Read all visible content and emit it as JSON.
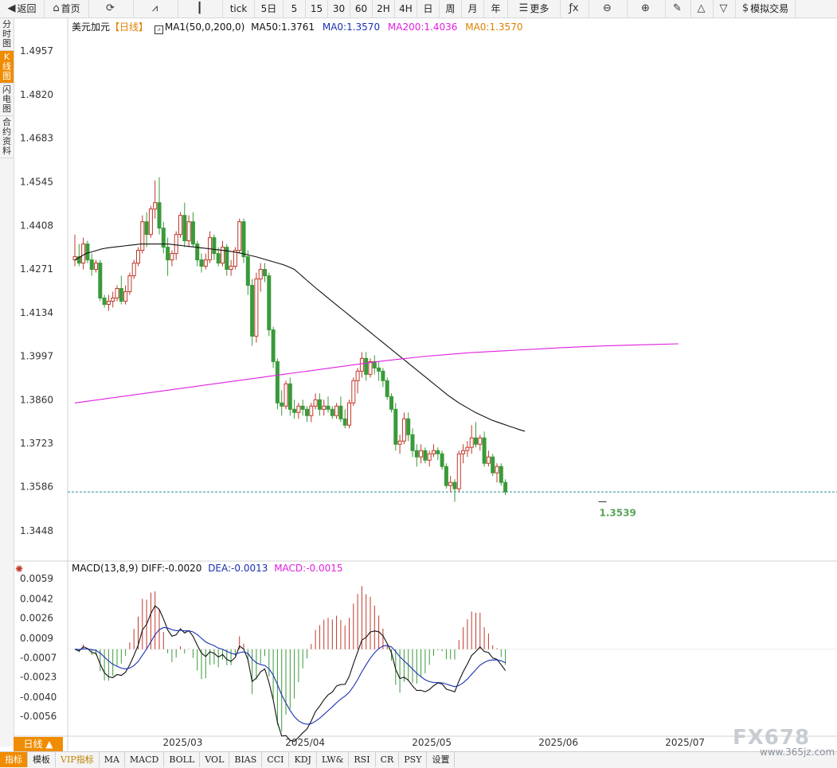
{
  "toolbar": [
    {
      "label": "返回",
      "icon": "back-arrow-icon",
      "glyph": "◀",
      "w": 56
    },
    {
      "label": "首页",
      "icon": "home-icon",
      "glyph": "⌂",
      "w": 56
    },
    {
      "label": "",
      "icon": "refresh-icon",
      "glyph": "⟳",
      "w": 56
    },
    {
      "label": "",
      "icon": "line-chart-icon",
      "glyph": "⩘",
      "w": 56
    },
    {
      "label": "",
      "icon": "candlestick-icon",
      "glyph": "┃",
      "w": 56
    },
    {
      "label": "tick",
      "icon": "",
      "glyph": "",
      "w": 40
    },
    {
      "label": "5日",
      "icon": "",
      "glyph": "",
      "w": 36
    },
    {
      "label": "5",
      "icon": "",
      "glyph": "",
      "w": 28
    },
    {
      "label": "15",
      "icon": "",
      "glyph": "",
      "w": 28
    },
    {
      "label": "30",
      "icon": "",
      "glyph": "",
      "w": 28
    },
    {
      "label": "60",
      "icon": "",
      "glyph": "",
      "w": 28
    },
    {
      "label": "2H",
      "icon": "",
      "glyph": "",
      "w": 28
    },
    {
      "label": "4H",
      "icon": "",
      "glyph": "",
      "w": 28
    },
    {
      "label": "日",
      "icon": "",
      "glyph": "",
      "w": 28
    },
    {
      "label": "周",
      "icon": "",
      "glyph": "",
      "w": 28
    },
    {
      "label": "月",
      "icon": "",
      "glyph": "",
      "w": 28
    },
    {
      "label": "年",
      "icon": "",
      "glyph": "",
      "w": 30
    },
    {
      "label": "更多",
      "icon": "menu-icon",
      "glyph": "☰",
      "w": 66
    },
    {
      "label": "",
      "icon": "function-icon",
      "glyph": "ƒx",
      "w": 36
    },
    {
      "label": "",
      "icon": "zoom-out-icon",
      "glyph": "⊖",
      "w": 48
    },
    {
      "label": "",
      "icon": "zoom-in-icon",
      "glyph": "⊕",
      "w": 48
    },
    {
      "label": "",
      "icon": "pencil-icon",
      "glyph": "✎",
      "w": 32
    },
    {
      "label": "",
      "icon": "triangle-up-icon",
      "glyph": "△",
      "w": 28
    },
    {
      "label": "",
      "icon": "triangle-down-icon",
      "glyph": "▽",
      "w": 28
    },
    {
      "label": "模拟交易",
      "icon": "dollar-icon",
      "glyph": "$",
      "w": 75
    }
  ],
  "left_tabs": [
    {
      "label": "分时图",
      "active": false
    },
    {
      "label": "K线图",
      "active": true
    },
    {
      "label": "闪电图",
      "active": false
    },
    {
      "label": "合约资料",
      "active": false
    }
  ],
  "legend_main": {
    "symbol": "美元加元",
    "period": "【日线】",
    "ma_setting": "MA1(50,0,200,0)",
    "ma50": "MA50:1.3761",
    "ma0a": "MA0:1.3570",
    "ma200": "MA200:1.4036",
    "ma0b": "MA0:1.3570"
  },
  "legend_macd": {
    "name": "MACD(13,8,9)",
    "diff": "DIFF:-0.0020",
    "dea": "DEA:-0.0013",
    "macd": "MACD:-0.0015"
  },
  "period_tab": "日线 ▲",
  "bottom_tabs": [
    "指标",
    "模板",
    "VIP指标",
    "MA",
    "MACD",
    "BOLL",
    "VOL",
    "BIAS",
    "CCI",
    "KDJ",
    "LW&",
    "RSI",
    "CR",
    "PSY",
    "设置"
  ],
  "watermark": {
    "line1": "FX678",
    "line2": "www.365jz.com"
  },
  "colors": {
    "up": "#c0392b",
    "down": "#3a9a3a",
    "ma50": "#111111",
    "ma200": "#e020e0",
    "diff": "#111111",
    "dea": "#1a2fb0",
    "current_line": "#2a8f8f",
    "low_label": "#5aa55a"
  },
  "chart_data": {
    "type": "candlestick",
    "price_axis": {
      "ticks": [
        "1.4957",
        "1.4820",
        "1.4683",
        "1.4545",
        "1.4408",
        "1.4271",
        "1.4134",
        "1.3997",
        "1.3860",
        "1.3723",
        "1.3586",
        "1.3448"
      ],
      "range": [
        1.3355,
        1.503
      ]
    },
    "macd_axis": {
      "ticks": [
        "0.0059",
        "0.0042",
        "0.0026",
        "0.0009",
        "-0.0007",
        "-0.0023",
        "-0.0040",
        "-0.0056"
      ],
      "range": [
        -0.007,
        0.0065
      ]
    },
    "x_labels": [
      {
        "label": "2025/03",
        "index": 25
      },
      {
        "label": "2025/04",
        "index": 54
      },
      {
        "label": "2025/05",
        "index": 84
      },
      {
        "label": "2025/06",
        "index": 114
      },
      {
        "label": "2025/07",
        "index": 144
      }
    ],
    "current_price": 1.357,
    "low_annotation": {
      "label": "1.3539",
      "value": 1.3539,
      "index": 125
    },
    "ohlc": [
      [
        1.43,
        1.438,
        1.428,
        1.431
      ],
      [
        1.431,
        1.435,
        1.428,
        1.429
      ],
      [
        1.429,
        1.437,
        1.427,
        1.435
      ],
      [
        1.435,
        1.436,
        1.429,
        1.43
      ],
      [
        1.43,
        1.432,
        1.425,
        1.427
      ],
      [
        1.427,
        1.43,
        1.426,
        1.429
      ],
      [
        1.429,
        1.43,
        1.417,
        1.418
      ],
      [
        1.418,
        1.419,
        1.415,
        1.416
      ],
      [
        1.416,
        1.419,
        1.414,
        1.417
      ],
      [
        1.417,
        1.42,
        1.415,
        1.418
      ],
      [
        1.418,
        1.422,
        1.417,
        1.421
      ],
      [
        1.421,
        1.425,
        1.416,
        1.417
      ],
      [
        1.417,
        1.422,
        1.416,
        1.42
      ],
      [
        1.42,
        1.426,
        1.419,
        1.425
      ],
      [
        1.425,
        1.43,
        1.424,
        1.429
      ],
      [
        1.429,
        1.434,
        1.428,
        1.433
      ],
      [
        1.433,
        1.444,
        1.432,
        1.442
      ],
      [
        1.442,
        1.445,
        1.434,
        1.438
      ],
      [
        1.438,
        1.447,
        1.437,
        1.446
      ],
      [
        1.446,
        1.455,
        1.443,
        1.448
      ],
      [
        1.448,
        1.456,
        1.438,
        1.44
      ],
      [
        1.44,
        1.442,
        1.432,
        1.434
      ],
      [
        1.434,
        1.437,
        1.425,
        1.43
      ],
      [
        1.43,
        1.433,
        1.428,
        1.432
      ],
      [
        1.432,
        1.439,
        1.43,
        1.438
      ],
      [
        1.438,
        1.445,
        1.437,
        1.444
      ],
      [
        1.444,
        1.448,
        1.434,
        1.436
      ],
      [
        1.436,
        1.444,
        1.434,
        1.442
      ],
      [
        1.442,
        1.445,
        1.434,
        1.435
      ],
      [
        1.435,
        1.436,
        1.428,
        1.43
      ],
      [
        1.43,
        1.432,
        1.426,
        1.428
      ],
      [
        1.428,
        1.432,
        1.427,
        1.43
      ],
      [
        1.43,
        1.439,
        1.429,
        1.437
      ],
      [
        1.437,
        1.438,
        1.43,
        1.432
      ],
      [
        1.432,
        1.434,
        1.428,
        1.429
      ],
      [
        1.429,
        1.436,
        1.428,
        1.434
      ],
      [
        1.434,
        1.435,
        1.425,
        1.427
      ],
      [
        1.427,
        1.43,
        1.425,
        1.428
      ],
      [
        1.428,
        1.434,
        1.427,
        1.433
      ],
      [
        1.433,
        1.443,
        1.432,
        1.442
      ],
      [
        1.442,
        1.443,
        1.429,
        1.431
      ],
      [
        1.431,
        1.433,
        1.419,
        1.422
      ],
      [
        1.422,
        1.424,
        1.403,
        1.406
      ],
      [
        1.406,
        1.426,
        1.404,
        1.424
      ],
      [
        1.424,
        1.429,
        1.42,
        1.427
      ],
      [
        1.427,
        1.429,
        1.423,
        1.425
      ],
      [
        1.425,
        1.426,
        1.406,
        1.408
      ],
      [
        1.408,
        1.409,
        1.396,
        1.398
      ],
      [
        1.398,
        1.399,
        1.383,
        1.385
      ],
      [
        1.385,
        1.389,
        1.381,
        1.384
      ],
      [
        1.384,
        1.392,
        1.383,
        1.391
      ],
      [
        1.391,
        1.393,
        1.381,
        1.383
      ],
      [
        1.383,
        1.386,
        1.38,
        1.382
      ],
      [
        1.382,
        1.385,
        1.38,
        1.384
      ],
      [
        1.384,
        1.386,
        1.381,
        1.383
      ],
      [
        1.383,
        1.384,
        1.379,
        1.381
      ],
      [
        1.381,
        1.385,
        1.379,
        1.384
      ],
      [
        1.384,
        1.388,
        1.383,
        1.386
      ],
      [
        1.386,
        1.388,
        1.381,
        1.383
      ],
      [
        1.383,
        1.386,
        1.381,
        1.384
      ],
      [
        1.384,
        1.387,
        1.382,
        1.383
      ],
      [
        1.383,
        1.384,
        1.38,
        1.381
      ],
      [
        1.381,
        1.385,
        1.38,
        1.384
      ],
      [
        1.384,
        1.387,
        1.379,
        1.38
      ],
      [
        1.38,
        1.383,
        1.377,
        1.378
      ],
      [
        1.378,
        1.386,
        1.377,
        1.385
      ],
      [
        1.385,
        1.393,
        1.384,
        1.392
      ],
      [
        1.392,
        1.396,
        1.388,
        1.395
      ],
      [
        1.395,
        1.401,
        1.393,
        1.399
      ],
      [
        1.399,
        1.401,
        1.392,
        1.394
      ],
      [
        1.394,
        1.399,
        1.393,
        1.398
      ],
      [
        1.398,
        1.4,
        1.394,
        1.396
      ],
      [
        1.396,
        1.398,
        1.392,
        1.395
      ],
      [
        1.395,
        1.396,
        1.39,
        1.392
      ],
      [
        1.392,
        1.393,
        1.386,
        1.387
      ],
      [
        1.387,
        1.388,
        1.382,
        1.383
      ],
      [
        1.383,
        1.385,
        1.37,
        1.372
      ],
      [
        1.372,
        1.375,
        1.369,
        1.373
      ],
      [
        1.373,
        1.382,
        1.372,
        1.38
      ],
      [
        1.38,
        1.382,
        1.373,
        1.375
      ],
      [
        1.375,
        1.377,
        1.368,
        1.37
      ],
      [
        1.37,
        1.372,
        1.365,
        1.368
      ],
      [
        1.368,
        1.372,
        1.366,
        1.37
      ],
      [
        1.37,
        1.371,
        1.366,
        1.367
      ],
      [
        1.367,
        1.37,
        1.365,
        1.369
      ],
      [
        1.369,
        1.372,
        1.368,
        1.37
      ],
      [
        1.37,
        1.371,
        1.367,
        1.369
      ],
      [
        1.369,
        1.37,
        1.364,
        1.365
      ],
      [
        1.365,
        1.366,
        1.358,
        1.359
      ],
      [
        1.359,
        1.362,
        1.357,
        1.36
      ],
      [
        1.36,
        1.361,
        1.3539,
        1.358
      ],
      [
        1.358,
        1.37,
        1.357,
        1.369
      ],
      [
        1.369,
        1.372,
        1.366,
        1.37
      ],
      [
        1.37,
        1.373,
        1.368,
        1.371
      ],
      [
        1.371,
        1.378,
        1.369,
        1.374
      ],
      [
        1.374,
        1.379,
        1.371,
        1.372
      ],
      [
        1.372,
        1.375,
        1.37,
        1.374
      ],
      [
        1.374,
        1.376,
        1.365,
        1.366
      ],
      [
        1.366,
        1.37,
        1.365,
        1.368
      ],
      [
        1.368,
        1.369,
        1.362,
        1.363
      ],
      [
        1.363,
        1.366,
        1.36,
        1.365
      ],
      [
        1.365,
        1.366,
        1.359,
        1.36
      ],
      [
        1.36,
        1.361,
        1.356,
        1.357
      ]
    ],
    "ma50": [
      1.43,
      1.431,
      1.432,
      1.4325,
      1.433,
      1.4335,
      1.4338,
      1.434,
      1.4342,
      1.4344,
      1.4346,
      1.4348,
      1.435,
      1.435,
      1.435,
      1.435,
      1.435,
      1.435,
      1.4348,
      1.4346,
      1.4344,
      1.4342,
      1.434,
      1.4338,
      1.4336,
      1.4334,
      1.4332,
      1.433,
      1.4328,
      1.4325,
      1.4322,
      1.4318,
      1.4314,
      1.431,
      1.4305,
      1.43,
      1.4295,
      1.429,
      1.4285,
      1.4278,
      1.427,
      1.4255,
      1.424,
      1.4225,
      1.421,
      1.4196,
      1.4182,
      1.4168,
      1.4154,
      1.414,
      1.4126,
      1.4112,
      1.4098,
      1.4084,
      1.407,
      1.4056,
      1.4042,
      1.4028,
      1.4014,
      1.4,
      1.3986,
      1.3972,
      1.3958,
      1.3944,
      1.393,
      1.3916,
      1.3902,
      1.3888,
      1.3874,
      1.3862,
      1.385,
      1.384,
      1.383,
      1.382,
      1.3812,
      1.3804,
      1.3796,
      1.379,
      1.3784,
      1.3778,
      1.3772,
      1.3766,
      1.3761
    ],
    "ma200": [
      1.385,
      1.386,
      1.387,
      1.388,
      1.389,
      1.39,
      1.391,
      1.392,
      1.393,
      1.394,
      1.395,
      1.396,
      1.397,
      1.398,
      1.3988,
      1.3996,
      1.4002,
      1.4008,
      1.4012,
      1.4016,
      1.402,
      1.4024,
      1.4027,
      1.403,
      1.4032,
      1.4034,
      1.4036
    ]
  }
}
